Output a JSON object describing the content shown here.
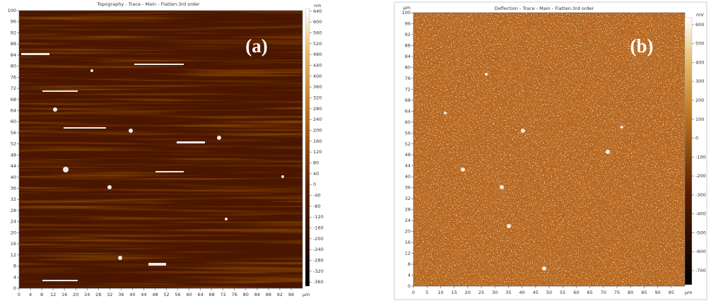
{
  "chart_data": [
    {
      "type": "image",
      "title": "Topography - Trace - Main - Flatten:3rd order",
      "panel_label": "(a)",
      "x_unit": "μm",
      "xlim": [
        0,
        100
      ],
      "ylim": [
        0,
        100
      ],
      "xticks": [
        0,
        4,
        8,
        12,
        16,
        20,
        24,
        28,
        32,
        36,
        40,
        44,
        48,
        52,
        56,
        60,
        64,
        68,
        72,
        76,
        80,
        84,
        88,
        92,
        96
      ],
      "yticks": [
        0,
        4,
        8,
        12,
        16,
        20,
        24,
        28,
        32,
        36,
        40,
        44,
        48,
        52,
        56,
        60,
        64,
        68,
        72,
        76,
        80,
        84,
        88,
        92,
        96,
        100
      ],
      "colorbar": {
        "unit": "nm",
        "lim": [
          -375,
          650
        ],
        "ticks": [
          640,
          600,
          560,
          520,
          480,
          440,
          400,
          360,
          320,
          280,
          240,
          200,
          160,
          120,
          80,
          40,
          0,
          -40,
          -80,
          -120,
          -160,
          -200,
          -240,
          -280,
          -320,
          -360
        ]
      }
    },
    {
      "type": "image",
      "title": "Deflection - Trace - Main - Flatten:3rd order",
      "panel_label": "(b)",
      "x_unit": "μm",
      "y_unit": "μm",
      "xlim": [
        0,
        100
      ],
      "ylim": [
        0,
        100
      ],
      "xticks": [
        0,
        5,
        10,
        15,
        20,
        25,
        30,
        35,
        40,
        45,
        50,
        55,
        60,
        65,
        70,
        75,
        80,
        85,
        90,
        95
      ],
      "yticks": [
        0,
        4,
        8,
        12,
        16,
        20,
        24,
        28,
        32,
        36,
        40,
        44,
        48,
        52,
        56,
        60,
        64,
        68,
        72,
        76,
        80,
        84,
        88,
        92,
        96,
        100
      ],
      "colorbar": {
        "unit": "mV",
        "lim": [
          -775,
          637
        ],
        "ticks": [
          600,
          500,
          400,
          300,
          200,
          100,
          0,
          -100,
          -200,
          -300,
          -400,
          -500,
          -600,
          -700
        ]
      }
    }
  ]
}
